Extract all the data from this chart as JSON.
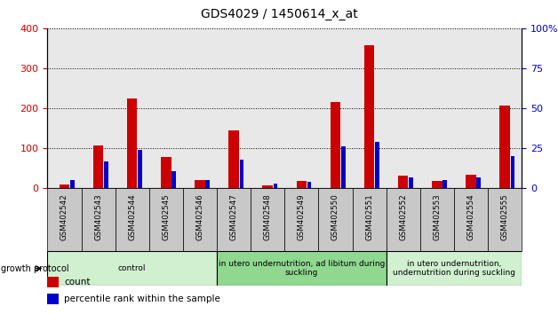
{
  "title": "GDS4029 / 1450614_x_at",
  "categories": [
    "GSM402542",
    "GSM402543",
    "GSM402544",
    "GSM402545",
    "GSM402546",
    "GSM402547",
    "GSM402548",
    "GSM402549",
    "GSM402550",
    "GSM402551",
    "GSM402552",
    "GSM402553",
    "GSM402554",
    "GSM402555"
  ],
  "count_values": [
    10,
    108,
    224,
    78,
    20,
    145,
    8,
    18,
    215,
    357,
    33,
    18,
    35,
    208
  ],
  "percentile_values": [
    5,
    17,
    24,
    11,
    5,
    18,
    3,
    4,
    26,
    29,
    7,
    5,
    7,
    20
  ],
  "count_color": "#cc0000",
  "percentile_color": "#0000cc",
  "left_ylim": [
    0,
    400
  ],
  "right_ylim": [
    0,
    100
  ],
  "left_yticks": [
    0,
    100,
    200,
    300,
    400
  ],
  "right_yticks": [
    0,
    25,
    50,
    75,
    100
  ],
  "right_yticklabels": [
    "0",
    "25",
    "50",
    "75",
    "100%"
  ],
  "plot_bg_color": "#e8e8e8",
  "tick_bg_color": "#c8c8c8",
  "count_bar_width": 0.3,
  "pct_bar_width": 0.12,
  "groups": [
    {
      "label": "control",
      "start": 0,
      "end": 4,
      "color": "#d0f0d0"
    },
    {
      "label": "in utero undernutrition, ad libitum during\nsuckling",
      "start": 5,
      "end": 9,
      "color": "#90d890"
    },
    {
      "label": "in utero undernutrition,\nundernutrition during suckling",
      "start": 10,
      "end": 13,
      "color": "#d0f0d0"
    }
  ],
  "growth_protocol_label": "growth protocol",
  "legend_items": [
    {
      "label": "count",
      "color": "#cc0000"
    },
    {
      "label": "percentile rank within the sample",
      "color": "#0000cc"
    }
  ],
  "tick_color_left": "#cc0000",
  "tick_color_right": "#0000cc",
  "title_fontsize": 10
}
